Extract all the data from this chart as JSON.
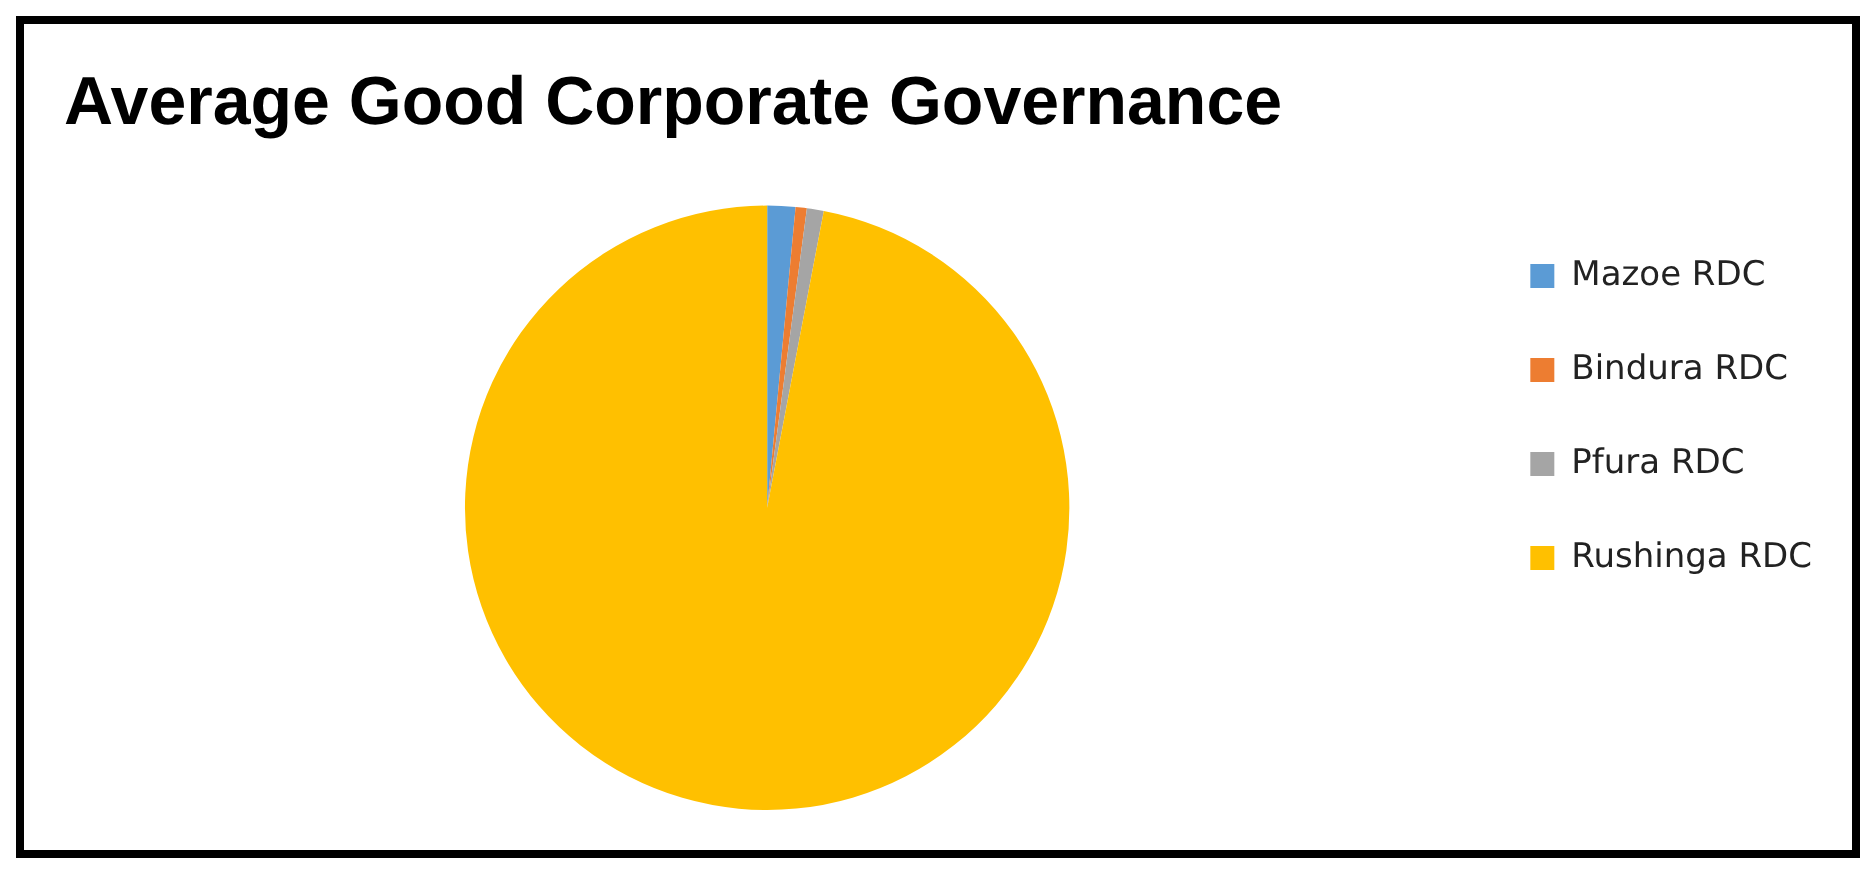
{
  "chart_data": {
    "type": "pie",
    "title": "Average Good Corporate Governance",
    "categories": [
      "Mazoe RDC",
      "Bindura RDC",
      "Pfura RDC",
      "Rushinga RDC"
    ],
    "values": [
      1.5,
      0.6,
      0.9,
      97
    ],
    "colors": [
      "#5b9bd5",
      "#ed7d31",
      "#a5a5a5",
      "#ffc000"
    ],
    "legend": "right"
  }
}
